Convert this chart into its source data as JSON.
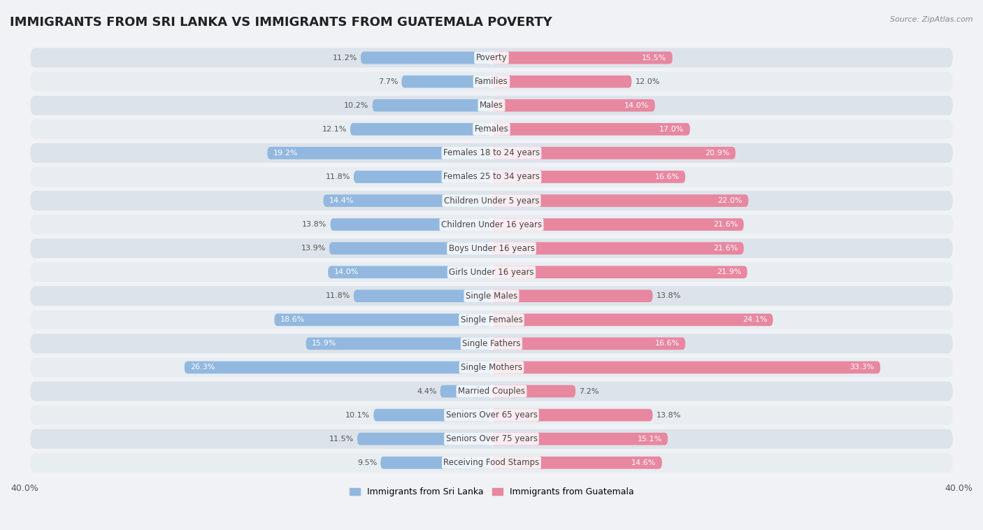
{
  "title": "IMMIGRANTS FROM SRI LANKA VS IMMIGRANTS FROM GUATEMALA POVERTY",
  "source": "Source: ZipAtlas.com",
  "categories": [
    "Poverty",
    "Families",
    "Males",
    "Females",
    "Females 18 to 24 years",
    "Females 25 to 34 years",
    "Children Under 5 years",
    "Children Under 16 years",
    "Boys Under 16 years",
    "Girls Under 16 years",
    "Single Males",
    "Single Females",
    "Single Fathers",
    "Single Mothers",
    "Married Couples",
    "Seniors Over 65 years",
    "Seniors Over 75 years",
    "Receiving Food Stamps"
  ],
  "sri_lanka": [
    11.2,
    7.7,
    10.2,
    12.1,
    19.2,
    11.8,
    14.4,
    13.8,
    13.9,
    14.0,
    11.8,
    18.6,
    15.9,
    26.3,
    4.4,
    10.1,
    11.5,
    9.5
  ],
  "guatemala": [
    15.5,
    12.0,
    14.0,
    17.0,
    20.9,
    16.6,
    22.0,
    21.6,
    21.6,
    21.9,
    13.8,
    24.1,
    16.6,
    33.3,
    7.2,
    13.8,
    15.1,
    14.6
  ],
  "sri_lanka_color": "#92b8df",
  "guatemala_color": "#e887a0",
  "sri_lanka_label": "Immigrants from Sri Lanka",
  "guatemala_label": "Immigrants from Guatemala",
  "row_bg_color": "#e8edf2",
  "row_alt_bg_color": "#f2f5f8",
  "background_color": "#f0f2f5",
  "title_fontsize": 13,
  "label_fontsize": 8.5,
  "value_fontsize": 8.0,
  "axis_min": -40.0,
  "axis_max": 40.0
}
